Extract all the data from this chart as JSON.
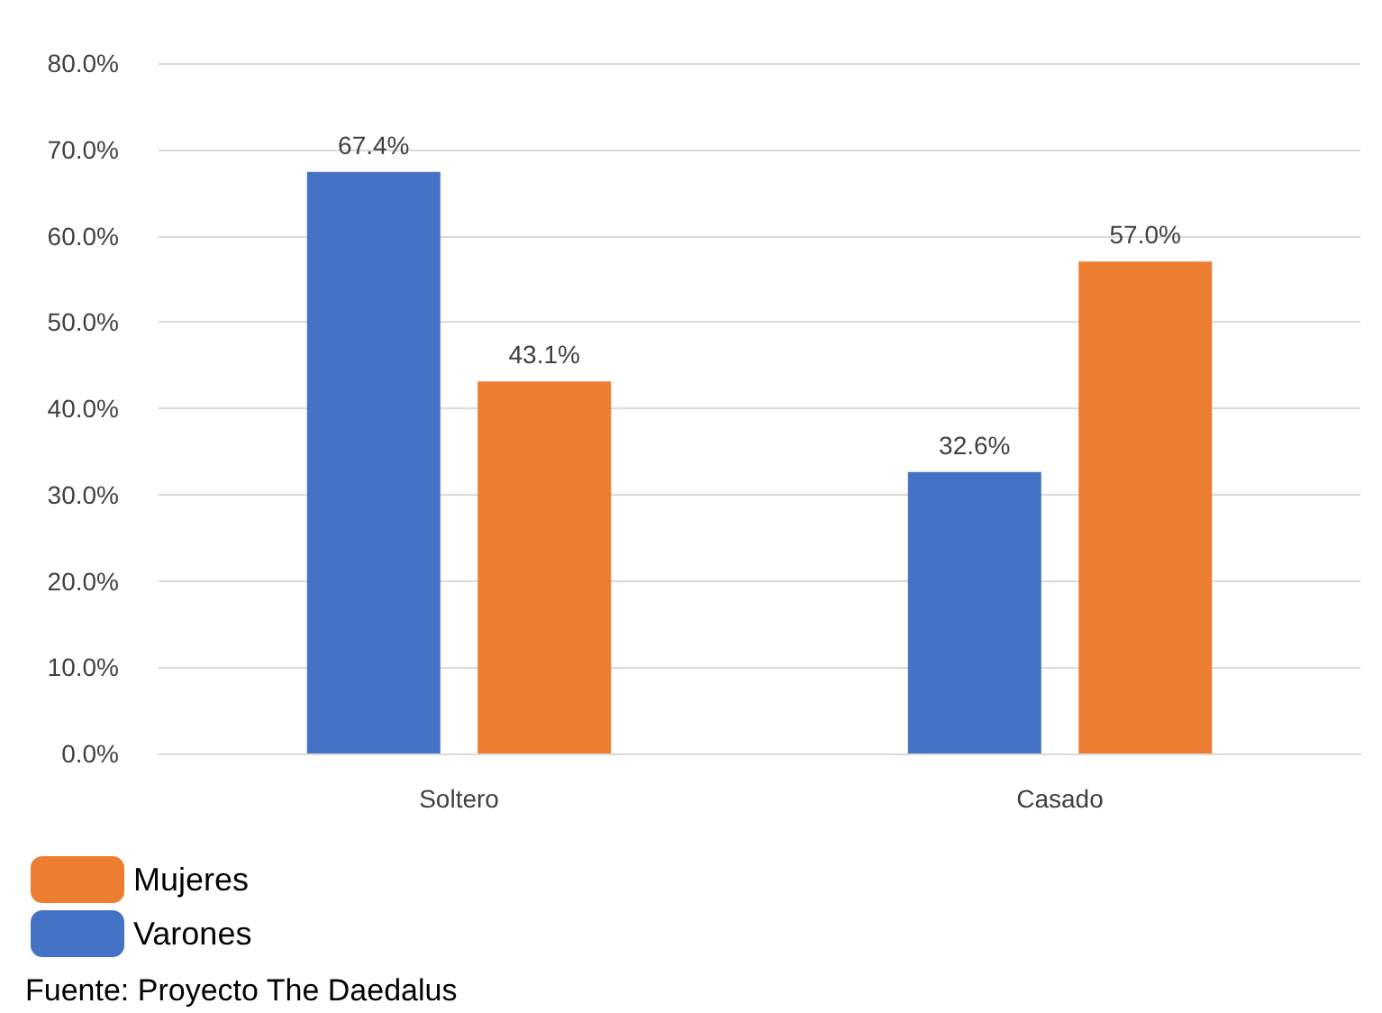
{
  "chart_data": {
    "type": "bar",
    "categories": [
      "Soltero",
      "Casado"
    ],
    "series": [
      {
        "name": "Varones",
        "color": "#4472c4",
        "values": [
          67.4,
          32.6
        ],
        "value_labels": [
          "67.4%",
          "32.6%"
        ]
      },
      {
        "name": "Mujeres",
        "color": "#ed7d31",
        "values": [
          43.1,
          57.0
        ],
        "value_labels": [
          "43.1%",
          "57.0%"
        ]
      }
    ],
    "ylim": [
      0,
      80
    ],
    "yticks": [
      {
        "value": 0,
        "label": "0.0%"
      },
      {
        "value": 10,
        "label": "10.0%"
      },
      {
        "value": 20,
        "label": "20.0%"
      },
      {
        "value": 30,
        "label": "30.0%"
      },
      {
        "value": 40,
        "label": "40.0%"
      },
      {
        "value": 50,
        "label": "50.0%"
      },
      {
        "value": 60,
        "label": "60.0%"
      },
      {
        "value": 70,
        "label": "70.0%"
      },
      {
        "value": 80,
        "label": "80.0%"
      }
    ],
    "grid": "y",
    "legend": "bottom left",
    "annotations": [
      "Fuente: Proyecto The Daedalus"
    ]
  }
}
